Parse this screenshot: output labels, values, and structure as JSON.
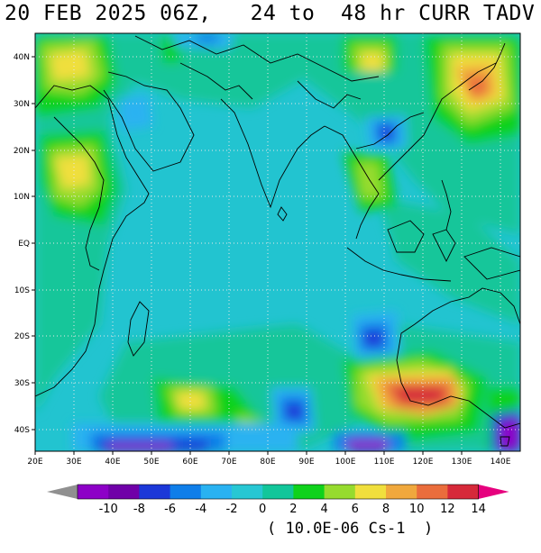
{
  "title": "20 FEB 2025 06Z,   24 to  48 hr CURR TADV",
  "units": "( 10.0E-06 Cs-1  )",
  "lat_labels": [
    "40N",
    "30N",
    "20N",
    "10N",
    "EQ",
    "10S",
    "20S",
    "30S",
    "40S"
  ],
  "lon_labels": [
    "20E",
    "30E",
    "40E",
    "50E",
    "60E",
    "70E",
    "80E",
    "90E",
    "100E",
    "110E",
    "120E",
    "130E",
    "140E"
  ],
  "colorbar": {
    "levels": [
      "-10",
      "-8",
      "-6",
      "-4",
      "-2",
      "0",
      "2",
      "4",
      "6",
      "8",
      "10",
      "12",
      "14"
    ],
    "colors": [
      "#8d00c7",
      "#7000a8",
      "#1c38d8",
      "#0f7ee9",
      "#29b2f1",
      "#27c7d3",
      "#12c69a",
      "#0fd21c",
      "#96db2e",
      "#f0df3d",
      "#f0a83d",
      "#ea6d3c",
      "#d6293a",
      "#e8237e"
    ],
    "under_color": "#909090",
    "over_color": "#e6007e"
  },
  "palette": {
    "background": "#22c4d0",
    "land_line": "#000000",
    "grid": "#d8d8d8"
  }
}
